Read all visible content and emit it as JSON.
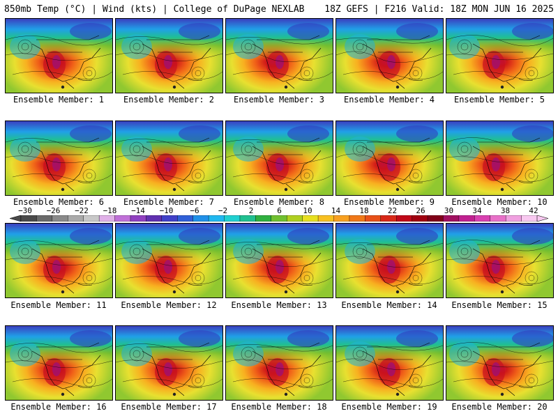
{
  "header": {
    "left": "850mb Temp (°C) | Wind (kts) | College of DuPage NEXLAB",
    "right": "18Z GEFS | F216 Valid: 18Z MON JUN 16 2025"
  },
  "members": [
    {
      "label": "Ensemble Member: 1"
    },
    {
      "label": "Ensemble Member: 2"
    },
    {
      "label": "Ensemble Member: 3"
    },
    {
      "label": "Ensemble Member: 4"
    },
    {
      "label": "Ensemble Member: 5"
    },
    {
      "label": "Ensemble Member: 6"
    },
    {
      "label": "Ensemble Member: 7"
    },
    {
      "label": "Ensemble Member: 8"
    },
    {
      "label": "Ensemble Member: 9"
    },
    {
      "label": "Ensemble Member: 10"
    },
    {
      "label": "Ensemble Member: 11"
    },
    {
      "label": "Ensemble Member: 12"
    },
    {
      "label": "Ensemble Member: 13"
    },
    {
      "label": "Ensemble Member: 14"
    },
    {
      "label": "Ensemble Member: 15"
    },
    {
      "label": "Ensemble Member: 16"
    },
    {
      "label": "Ensemble Member: 17"
    },
    {
      "label": "Ensemble Member: 18"
    },
    {
      "label": "Ensemble Member: 19"
    },
    {
      "label": "Ensemble Member: 20"
    }
  ],
  "colorbar": {
    "labels": [
      "−30",
      "−26",
      "−22",
      "−18",
      "−14",
      "−10",
      "−6",
      "−2",
      "2",
      "6",
      "10",
      "14",
      "18",
      "22",
      "26",
      "30",
      "34",
      "38",
      "42"
    ],
    "colors": [
      "#4a4a4a",
      "#6a6a6a",
      "#8a8a8a",
      "#aaaaaa",
      "#c8c8c8",
      "#e0b0e8",
      "#c070d8",
      "#9040c0",
      "#6030b0",
      "#4040c8",
      "#3060d8",
      "#2090e8",
      "#20b8f0",
      "#20d0d0",
      "#20c090",
      "#30b040",
      "#70c030",
      "#b0d020",
      "#e8e020",
      "#f8c020",
      "#f8a020",
      "#f07818",
      "#e85018",
      "#d82818",
      "#c00818",
      "#a00010",
      "#800018",
      "#a01060",
      "#c02090",
      "#d840b0",
      "#e870c8",
      "#f0a0e0",
      "#f8c8f0"
    ]
  }
}
